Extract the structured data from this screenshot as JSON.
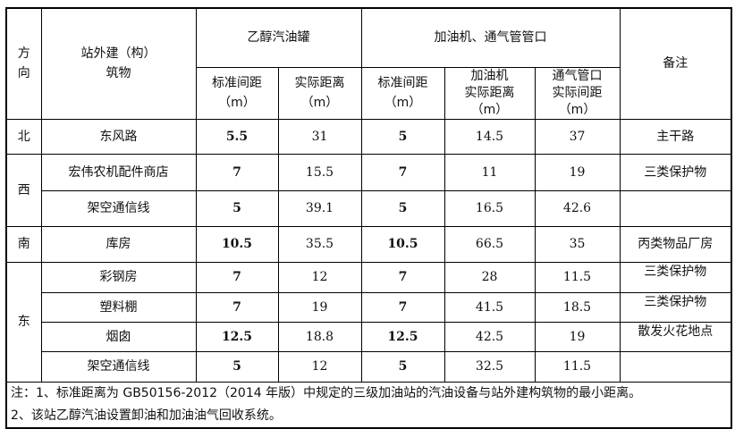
{
  "header": {
    "direction": "方\n向",
    "building": "站外建（构）\n筑物",
    "tank_group": "乙醇汽油罐",
    "dispenser_group": "加油机、通气管管口",
    "tank_std": "标准间距\n（m）",
    "tank_actual": "实际距离\n（m）",
    "disp_std": "标准间距\n（m）",
    "disp_actual": "加油机\n实际距离\n（m）",
    "vent_actual": "通气管口\n实际间距\n（m）",
    "remark": "备注"
  },
  "rows": [
    {
      "dir": "北",
      "name": "东风路",
      "tank_std": "5.5",
      "tank_actual": "31",
      "disp_std": "5",
      "disp_actual": "14.5",
      "vent_actual": "37",
      "remark": "主干路"
    },
    {
      "dir": "西",
      "name": "宏伟农机配件商店",
      "tank_std": "7",
      "tank_actual": "15.5",
      "disp_std": "7",
      "disp_actual": "11",
      "vent_actual": "19",
      "remark": "三类保护物"
    },
    {
      "dir": "",
      "name": "架空通信线",
      "tank_std": "5",
      "tank_actual": "39.1",
      "disp_std": "5",
      "disp_actual": "16.5",
      "vent_actual": "42.6",
      "remark": ""
    },
    {
      "dir": "南",
      "name": "库房",
      "tank_std": "10.5",
      "tank_actual": "35.5",
      "disp_std": "10.5",
      "disp_actual": "66.5",
      "vent_actual": "35",
      "remark": "丙类物品厂房"
    },
    {
      "dir": "东",
      "name": "彩钢房",
      "tank_std": "7",
      "tank_actual": "12",
      "disp_std": "7",
      "disp_actual": "28",
      "vent_actual": "11.5",
      "remark": "三类保护物"
    },
    {
      "dir": "",
      "name": "塑料棚",
      "tank_std": "7",
      "tank_actual": "19",
      "disp_std": "7",
      "disp_actual": "41.5",
      "vent_actual": "18.5",
      "remark": "三类保护物"
    },
    {
      "dir": "",
      "name": "烟囱",
      "tank_std": "12.5",
      "tank_actual": "18.8",
      "disp_std": "12.5",
      "disp_actual": "42.5",
      "vent_actual": "19",
      "remark": "散发火花地点"
    },
    {
      "dir": "",
      "name": "架空通信线",
      "tank_std": "5",
      "tank_actual": "12",
      "disp_std": "5",
      "disp_actual": "32.5",
      "vent_actual": "11.5",
      "remark": ""
    }
  ],
  "notes": [
    "注：1、标准距离为 GB50156-2012（2014 年版）中规定的三级加油站的汽油设备与站外建构筑物的最小距离。",
    "2、该站乙醇汽油设置卸油和加油油气回收系统。"
  ]
}
